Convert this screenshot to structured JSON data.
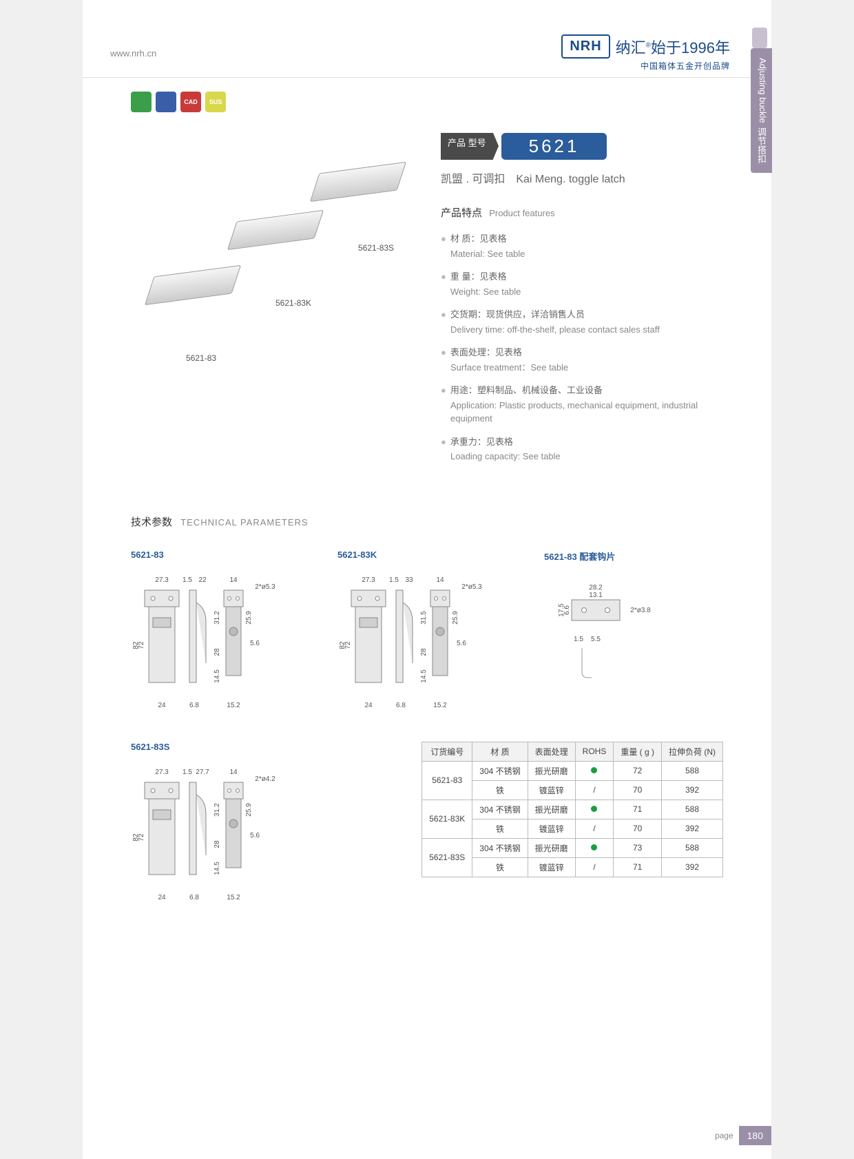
{
  "header": {
    "url": "www.nrh.cn",
    "logo": "NRH",
    "brand": "纳汇",
    "since": "始于1996年",
    "tagline": "中国箱体五金开创品牌"
  },
  "side_tab": {
    "cn": "调节搭扣",
    "en": "Adjusting buckle"
  },
  "badges": [
    {
      "color": "#3a9e4a",
      "text": ""
    },
    {
      "color": "#3a5ea8",
      "text": ""
    },
    {
      "color": "#c93a3a",
      "text": "CAD"
    },
    {
      "color": "#d8d84a",
      "text": "SUS"
    }
  ],
  "product": {
    "model_label": "产品\n型号",
    "model_number": "5621",
    "subtitle_cn": "凯盟 . 可调扣",
    "subtitle_en": "Kai Meng. toggle latch",
    "features_title_cn": "产品特点",
    "features_title_en": "Product features",
    "features": [
      {
        "cn": "材 质：见表格",
        "en": "Material: See table"
      },
      {
        "cn": "重 量：见表格",
        "en": "Weight: See table"
      },
      {
        "cn": "交货期：现货供应，详洽销售人员",
        "en": "Delivery time: off-the-shelf, please contact sales staff"
      },
      {
        "cn": "表面处理：见表格",
        "en": "Surface treatment：See table"
      },
      {
        "cn": "用途：塑料制品、机械设备、工业设备",
        "en": "Application: Plastic products, mechanical equipment, industrial equipment"
      },
      {
        "cn": "承重力：见表格",
        "en": "Loading capacity: See table"
      }
    ]
  },
  "photo_labels": [
    "5621-83",
    "5621-83K",
    "5621-83S"
  ],
  "tech": {
    "title_cn": "技术参数",
    "title_en": "TECHNICAL PARAMETERS",
    "drawings": [
      {
        "label": "5621-83",
        "dims": {
          "top1": "27.3",
          "top2": "1.5",
          "top3": "22",
          "top4": "14",
          "hole": "2*ø5.3",
          "h_out": "82",
          "h_in": "72",
          "bot1": "24",
          "bot2": "6.8",
          "r1": "31.2",
          "r2": "25.9",
          "r3": "28",
          "r4": "14.5",
          "r5": "5.6",
          "r6": "15.2"
        }
      },
      {
        "label": "5621-83K",
        "dims": {
          "top1": "27.3",
          "top2": "1.5",
          "top3": "33",
          "top4": "14",
          "hole": "2*ø5.3",
          "h_out": "82",
          "h_in": "72",
          "bot1": "24",
          "bot2": "6.8",
          "r1": "31.5",
          "r2": "25.9",
          "r3": "28",
          "r4": "14.5",
          "r5": "5.6",
          "r6": "15.2"
        }
      },
      {
        "label": "5621-83 配套钩片",
        "dims": {
          "w": "28.2",
          "w2": "13.1",
          "h": "17.5",
          "h2": "6.6",
          "hole": "2*ø3.8",
          "t1": "1.5",
          "t2": "5.5"
        }
      },
      {
        "label": "5621-83S",
        "dims": {
          "top1": "27.3",
          "top2": "1.5",
          "top3": "27.7",
          "top4": "14",
          "hole": "2*ø4.2",
          "h_out": "82",
          "h_in": "72",
          "bot1": "24",
          "bot2": "6.8",
          "r1": "31.2",
          "r2": "25.9",
          "r3": "28",
          "r4": "14.5",
          "r5": "5.6",
          "r6": "15.2"
        }
      }
    ]
  },
  "spec_headers": [
    "订货编号",
    "材 质",
    "表面处理",
    "ROHS",
    "重量 ( g )",
    "拉伸负荷 (N)"
  ],
  "spec_rows": [
    {
      "code": "5621-83",
      "mat": "304 不锈钢",
      "surf": "振光研磨",
      "rohs": "dot",
      "w": "72",
      "load": "588"
    },
    {
      "code": "",
      "mat": "铁",
      "surf": "镀蓝锌",
      "rohs": "/",
      "w": "70",
      "load": "392"
    },
    {
      "code": "5621-83K",
      "mat": "304 不锈钢",
      "surf": "振光研磨",
      "rohs": "dot",
      "w": "71",
      "load": "588"
    },
    {
      "code": "",
      "mat": "铁",
      "surf": "镀蓝锌",
      "rohs": "/",
      "w": "70",
      "load": "392"
    },
    {
      "code": "5621-83S",
      "mat": "304 不锈钢",
      "surf": "振光研磨",
      "rohs": "dot",
      "w": "73",
      "load": "588"
    },
    {
      "code": "",
      "mat": "铁",
      "surf": "镀蓝锌",
      "rohs": "/",
      "w": "71",
      "load": "392"
    }
  ],
  "page_number": {
    "label": "page",
    "num": "180"
  }
}
